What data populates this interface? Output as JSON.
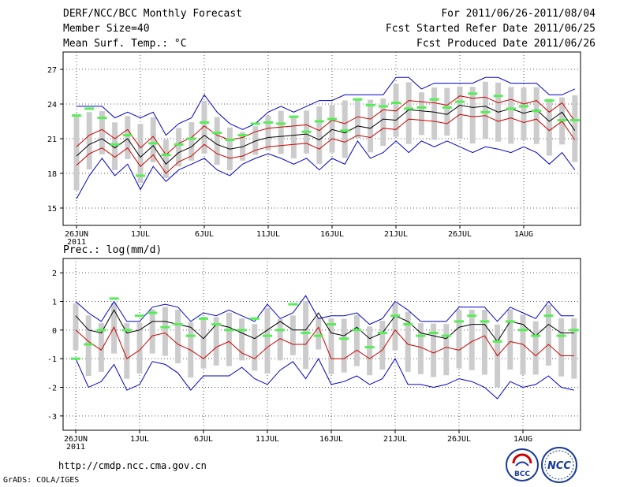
{
  "header": {
    "title": "DERF/NCC/BCC Monthly Forecast",
    "member_size": "Member Size=40",
    "variable": "Mean Surf. Temp.: °C",
    "period": "For 2011/06/26-2011/08/04",
    "started": "Fcst Started Refer Date 2011/06/25",
    "produced": "Fcst Produced Date 2011/06/26"
  },
  "footer": {
    "url": "http://cmdp.ncc.cma.gov.cn",
    "grads": "GrADS: COLA/IGES",
    "logo_bcc": "BCC",
    "logo_ncc": "NCC"
  },
  "colors": {
    "mean_line": "#000000",
    "spread_line": "#cc0000",
    "extreme_line": "#0000cc",
    "box": "#cccccc",
    "marker": "#55ee55",
    "grid": "#555555"
  },
  "chart_data": [
    {
      "type": "line",
      "title": "Mean Surf. Temp.: °C",
      "x_labels": [
        "26JUN",
        "1JUL",
        "6JUL",
        "11JUL",
        "16JUL",
        "21JUL",
        "26JUL",
        "1AUG"
      ],
      "x_year": "2011",
      "ylim": [
        13.5,
        28.5
      ],
      "yticks": [
        "15",
        "18",
        "21",
        "24",
        "27"
      ],
      "ytick_values": [
        15,
        18,
        21,
        24,
        27
      ],
      "days": 40,
      "series": [
        {
          "name": "max",
          "values": [
            23.8,
            23.8,
            23.8,
            22.8,
            23.3,
            22.8,
            23.3,
            21.3,
            22.3,
            22.8,
            24.8,
            23.3,
            22.3,
            21.8,
            22.3,
            23.3,
            23.8,
            23.3,
            23.8,
            24.3,
            24.3,
            24.8,
            24.8,
            24.8,
            24.8,
            26.3,
            26.3,
            25.3,
            25.8,
            25.8,
            25.8,
            25.8,
            26.3,
            26.3,
            25.8,
            25.8,
            25.8,
            24.8,
            24.8,
            25.3
          ]
        },
        {
          "name": "upper",
          "values": [
            20.3,
            21.3,
            21.8,
            21.0,
            21.8,
            20.2,
            21.2,
            19.6,
            20.6,
            21.1,
            22.1,
            21.3,
            20.9,
            21.1,
            21.6,
            21.9,
            22.0,
            22.1,
            22.2,
            21.7,
            22.6,
            22.3,
            22.9,
            22.7,
            23.5,
            23.4,
            24.3,
            24.2,
            24.1,
            23.9,
            24.7,
            24.5,
            24.6,
            24.1,
            24.4,
            24.0,
            24.3,
            23.3,
            24.1,
            22.5
          ]
        },
        {
          "name": "mean",
          "values": [
            19.5,
            20.5,
            21.0,
            20.2,
            21.0,
            19.4,
            20.4,
            18.8,
            19.8,
            20.3,
            21.3,
            20.5,
            20.1,
            20.3,
            20.8,
            21.1,
            21.2,
            21.3,
            21.4,
            20.9,
            21.8,
            21.5,
            22.1,
            21.9,
            22.7,
            22.6,
            23.5,
            23.4,
            23.3,
            23.1,
            23.9,
            23.7,
            23.8,
            23.3,
            23.6,
            23.2,
            23.5,
            22.5,
            23.3,
            21.7
          ]
        },
        {
          "name": "lower",
          "values": [
            18.7,
            19.7,
            20.2,
            19.4,
            20.2,
            18.6,
            19.6,
            18.0,
            19.0,
            19.5,
            20.5,
            19.7,
            19.3,
            19.5,
            20.0,
            20.3,
            20.4,
            20.5,
            20.6,
            20.1,
            21.0,
            20.7,
            21.3,
            21.1,
            21.9,
            21.8,
            22.7,
            22.6,
            22.5,
            22.3,
            23.1,
            22.9,
            23.0,
            22.5,
            22.8,
            22.4,
            22.7,
            21.7,
            22.5,
            20.9
          ]
        },
        {
          "name": "min",
          "values": [
            15.8,
            17.8,
            19.3,
            17.8,
            18.8,
            16.6,
            18.6,
            17.3,
            18.3,
            18.8,
            19.3,
            18.3,
            17.8,
            18.8,
            19.3,
            19.7,
            19.3,
            18.8,
            19.3,
            18.3,
            19.3,
            18.8,
            20.8,
            19.3,
            19.8,
            20.8,
            19.8,
            20.8,
            20.3,
            20.8,
            20.3,
            19.8,
            20.3,
            20.1,
            19.8,
            20.3,
            19.8,
            18.8,
            19.8,
            18.3
          ]
        },
        {
          "name": "observed",
          "values": [
            23.0,
            23.6,
            22.8,
            20.5,
            21.3,
            17.8,
            20.6,
            19.6,
            20.5,
            21.0,
            22.4,
            21.5,
            20.9,
            21.3,
            22.3,
            22.4,
            22.3,
            22.9,
            21.6,
            22.5,
            22.7,
            21.7,
            24.4,
            23.9,
            23.8,
            24.1,
            23.6,
            23.7,
            24.4,
            23.7,
            24.2,
            24.9,
            23.3,
            24.7,
            23.6,
            23.8,
            23.4,
            24.3,
            22.6,
            22.6
          ]
        }
      ]
    },
    {
      "type": "line",
      "title": "Prec.: log(mm/d)",
      "x_labels": [
        "26JUN",
        "1JUL",
        "6JUL",
        "11JUL",
        "16JUL",
        "21JUL",
        "26JUL",
        "1AUG"
      ],
      "x_year": "2011",
      "ylim": [
        -3.5,
        2.5
      ],
      "yticks": [
        "-3",
        "-2",
        "-1",
        "0",
        "1",
        "2"
      ],
      "ytick_values": [
        -3,
        -2,
        -1,
        0,
        1,
        2
      ],
      "days": 40,
      "series": [
        {
          "name": "max",
          "values": [
            1.0,
            0.6,
            0.3,
            1.0,
            0.3,
            0.3,
            0.8,
            0.9,
            0.8,
            0.3,
            0.6,
            0.5,
            0.7,
            0.5,
            0.3,
            0.9,
            0.4,
            0.6,
            1.2,
            0.4,
            0.5,
            0.5,
            0.6,
            0.2,
            0.4,
            1.0,
            0.7,
            0.3,
            0.3,
            0.3,
            0.8,
            0.8,
            0.8,
            0.3,
            0.8,
            0.6,
            0.4,
            1.0,
            0.5,
            0.5
          ]
        },
        {
          "name": "mean",
          "values": [
            0.5,
            0.0,
            -0.1,
            0.7,
            -0.1,
            0.0,
            0.3,
            0.3,
            0.2,
            0.1,
            -0.3,
            0.2,
            0.1,
            -0.1,
            -0.3,
            0.0,
            0.3,
            0.0,
            0.0,
            0.6,
            -0.1,
            -0.2,
            0.1,
            -0.3,
            -0.1,
            0.5,
            0.3,
            -0.1,
            -0.2,
            -0.3,
            0.1,
            0.2,
            0.2,
            -0.4,
            0.3,
            0.2,
            -0.2,
            0.2,
            -0.1,
            -0.1
          ]
        },
        {
          "name": "lower",
          "values": [
            0.0,
            -0.4,
            -0.7,
            0.1,
            -1.0,
            -0.7,
            -0.2,
            -0.1,
            -0.5,
            -0.7,
            -1.0,
            -0.6,
            -0.4,
            -0.8,
            -1.0,
            -0.6,
            -0.3,
            -0.5,
            -0.5,
            0.1,
            -1.0,
            -1.0,
            -0.7,
            -1.0,
            -0.7,
            0.0,
            -0.5,
            -0.6,
            -0.8,
            -0.6,
            -0.7,
            -0.4,
            -0.2,
            -0.9,
            -0.4,
            -0.5,
            -0.9,
            -0.5,
            -0.9,
            -0.9
          ]
        },
        {
          "name": "min",
          "values": [
            -1.0,
            -2.0,
            -1.8,
            -1.2,
            -2.1,
            -1.9,
            -1.1,
            -1.2,
            -1.5,
            -2.1,
            -1.6,
            -1.6,
            -1.6,
            -1.3,
            -1.7,
            -1.9,
            -1.4,
            -1.1,
            -1.7,
            -1.0,
            -1.9,
            -1.8,
            -1.6,
            -1.9,
            -1.7,
            -1.0,
            -1.9,
            -1.9,
            -2.0,
            -1.9,
            -1.7,
            -1.8,
            -2.0,
            -2.4,
            -1.8,
            -2.0,
            -1.9,
            -1.6,
            -2.0,
            -2.1
          ]
        },
        {
          "name": "observed",
          "values": [
            -1.0,
            -0.5,
            0.0,
            1.1,
            0.0,
            0.5,
            0.6,
            0.1,
            0.2,
            -0.2,
            0.4,
            0.2,
            0.0,
            0.0,
            0.4,
            -0.2,
            0.0,
            0.9,
            -0.1,
            -0.2,
            0.2,
            -0.3,
            0.0,
            -0.6,
            -0.1,
            0.5,
            0.2,
            -0.2,
            -0.1,
            -0.2,
            0.3,
            0.5,
            0.3,
            -0.4,
            0.3,
            0.0,
            -0.2,
            0.5,
            -0.2,
            0.0
          ]
        }
      ]
    }
  ]
}
